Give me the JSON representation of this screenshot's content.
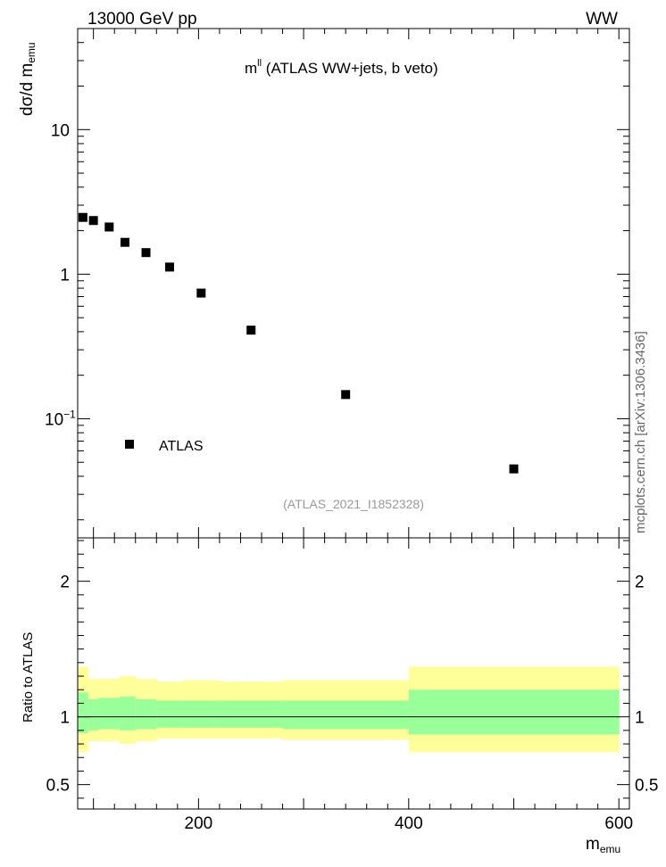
{
  "header": {
    "left": "13000 GeV pp",
    "right": "WW",
    "watermark": "mcplots.cern.ch [arXiv:1306.3436]"
  },
  "chart_data": [
    {
      "type": "scatter",
      "title": "m^ll (ATLAS WW+jets, b veto)",
      "title_main": "m",
      "title_sup": "ll",
      "title_rest": " (ATLAS WW+jets, b veto)",
      "analysis_id": "(ATLAS_2021_I1852328)",
      "ylabel": "dσ/d m emu",
      "ylabel_main": "dσ/d m",
      "ylabel_sub": "emu",
      "yscale": "log",
      "ylim": [
        0.015,
        50
      ],
      "xlim": [
        85,
        610
      ],
      "y_tick_labels": [
        {
          "value": 10,
          "label": "10"
        },
        {
          "value": 1,
          "label": "1"
        },
        {
          "value": 0.1,
          "label": "10",
          "sup": "−1"
        }
      ],
      "legend": {
        "label": "ATLAS",
        "position": "bottom-left"
      },
      "series": [
        {
          "name": "ATLAS",
          "color": "#000000",
          "x": [
            90,
            100,
            115,
            130,
            150,
            172.5,
            202.5,
            250,
            340,
            500
          ],
          "y": [
            2.47,
            2.35,
            2.12,
            1.66,
            1.41,
            1.12,
            0.74,
            0.41,
            0.147,
            0.045
          ]
        }
      ]
    },
    {
      "type": "area",
      "ylabel": "Ratio to ATLAS",
      "xlabel": "m emu",
      "xlabel_main": "m",
      "xlabel_sub": "emu",
      "xlim": [
        85,
        610
      ],
      "ylim": [
        0.32,
        2.32
      ],
      "x_tick_labels": [
        {
          "value": 200,
          "label": "200"
        },
        {
          "value": 400,
          "label": "400"
        },
        {
          "value": 600,
          "label": "600"
        }
      ],
      "y_tick_labels": [
        {
          "value": 2,
          "label": "2"
        },
        {
          "value": 1,
          "label": "1"
        },
        {
          "value": 0.5,
          "label": "0.5"
        }
      ],
      "reference_line": 1,
      "bands": {
        "outer_color": "#ffff99",
        "inner_color": "#99ff99",
        "bins": [
          {
            "lo": 85,
            "hi": 95,
            "outer": [
              0.74,
              1.37
            ],
            "inner": [
              0.88,
              1.18
            ]
          },
          {
            "lo": 95,
            "hi": 105,
            "outer": [
              0.82,
              1.28
            ],
            "inner": [
              0.9,
              1.13
            ]
          },
          {
            "lo": 105,
            "hi": 125,
            "outer": [
              0.82,
              1.28
            ],
            "inner": [
              0.91,
              1.14
            ]
          },
          {
            "lo": 125,
            "hi": 140,
            "outer": [
              0.8,
              1.3
            ],
            "inner": [
              0.9,
              1.15
            ]
          },
          {
            "lo": 140,
            "hi": 160,
            "outer": [
              0.82,
              1.28
            ],
            "inner": [
              0.91,
              1.13
            ]
          },
          {
            "lo": 160,
            "hi": 185,
            "outer": [
              0.84,
              1.26
            ],
            "inner": [
              0.92,
              1.12
            ]
          },
          {
            "lo": 185,
            "hi": 220,
            "outer": [
              0.84,
              1.27
            ],
            "inner": [
              0.92,
              1.12
            ]
          },
          {
            "lo": 220,
            "hi": 280,
            "outer": [
              0.84,
              1.26
            ],
            "inner": [
              0.92,
              1.12
            ]
          },
          {
            "lo": 280,
            "hi": 400,
            "outer": [
              0.83,
              1.27
            ],
            "inner": [
              0.91,
              1.12
            ]
          },
          {
            "lo": 400,
            "hi": 600,
            "outer": [
              0.74,
              1.37
            ],
            "inner": [
              0.87,
              1.2
            ]
          }
        ]
      }
    }
  ]
}
